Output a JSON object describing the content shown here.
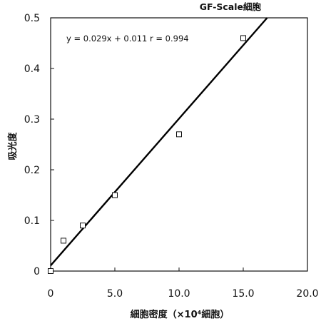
{
  "chart_data": {
    "type": "scatter",
    "title": "GF-Scale細胞",
    "xlabel": "細胞密度（×10⁴細胞）",
    "ylabel": "吸光度",
    "xlim": [
      0,
      20
    ],
    "ylim": [
      0,
      0.5
    ],
    "x_ticks": [
      "0",
      "5.0",
      "10.0",
      "15.0",
      "20.0"
    ],
    "y_ticks": [
      "0",
      "0.1",
      "0.2",
      "0.3",
      "0.4",
      "0.5"
    ],
    "points": [
      {
        "x": 0,
        "y": 0.0
      },
      {
        "x": 1,
        "y": 0.06
      },
      {
        "x": 2.5,
        "y": 0.09
      },
      {
        "x": 5,
        "y": 0.15
      },
      {
        "x": 10,
        "y": 0.27
      },
      {
        "x": 15,
        "y": 0.46
      }
    ],
    "fit": {
      "slope": 0.029,
      "intercept": 0.011
    },
    "annotation": "y = 0.029x + 0.011   r = 0.994",
    "grid": false
  }
}
